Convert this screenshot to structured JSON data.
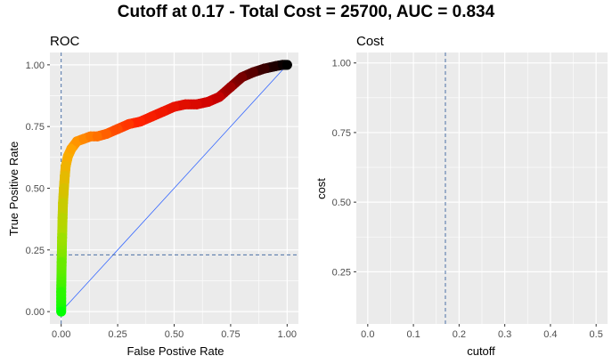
{
  "figure": {
    "title": "Cutoff at 0.17 - Total Cost = 25700, AUC = 0.834"
  },
  "chart_data": [
    {
      "type": "line",
      "title": "ROC",
      "xlabel": "False Postive Rate",
      "ylabel": "True Positive Rate",
      "xlim": [
        -0.05,
        1.05
      ],
      "ylim": [
        -0.05,
        1.05
      ],
      "x_ticks": [
        0.0,
        0.25,
        0.5,
        0.75,
        1.0
      ],
      "x_tick_labels": [
        "0.00",
        "0.25",
        "0.50",
        "0.75",
        "1.00"
      ],
      "y_ticks": [
        0.0,
        0.25,
        0.5,
        0.75,
        1.0
      ],
      "y_tick_labels": [
        "0.00",
        "0.25",
        "0.50",
        "0.75",
        "1.00"
      ],
      "grid": true,
      "background": "#ebebeb",
      "color_scale": [
        "#00ff00",
        "#aadd00",
        "#ffaa00",
        "#ff2200",
        "#cc0000",
        "#000000"
      ],
      "series": [
        {
          "x": [
            0.0,
            0.0,
            0.002,
            0.004,
            0.006,
            0.008,
            0.012,
            0.016,
            0.02,
            0.03,
            0.045,
            0.07,
            0.1,
            0.13,
            0.16,
            0.2,
            0.25,
            0.3,
            0.35,
            0.4,
            0.45,
            0.5,
            0.55,
            0.6,
            0.65,
            0.7,
            0.75,
            0.8,
            0.85,
            0.9,
            0.95,
            0.98,
            1.0
          ],
          "y": [
            0.0,
            0.08,
            0.2,
            0.3,
            0.38,
            0.44,
            0.5,
            0.55,
            0.59,
            0.63,
            0.66,
            0.69,
            0.7,
            0.71,
            0.71,
            0.72,
            0.74,
            0.76,
            0.77,
            0.79,
            0.81,
            0.83,
            0.84,
            0.84,
            0.85,
            0.87,
            0.91,
            0.95,
            0.97,
            0.985,
            0.995,
            1.0,
            1.0
          ]
        }
      ],
      "diagonal": {
        "x": [
          0,
          1
        ],
        "y": [
          0,
          1
        ],
        "color": "#3366ff"
      },
      "cutoff_lines": {
        "vline_x": 0.0,
        "hline_y": 0.23,
        "color": "#4a6fa5"
      }
    },
    {
      "type": "line",
      "title": "Cost",
      "xlabel": "cutoff",
      "ylabel": "cost",
      "xlim": [
        -0.025,
        0.525
      ],
      "ylim": [
        0.0625,
        1.0375
      ],
      "x_ticks": [
        0.0,
        0.1,
        0.2,
        0.3,
        0.4,
        0.5
      ],
      "x_tick_labels": [
        "0.0",
        "0.1",
        "0.2",
        "0.3",
        "0.4",
        "0.5"
      ],
      "y_ticks": [
        0.25,
        0.5,
        0.75,
        1.0
      ],
      "y_tick_labels": [
        "0.25",
        "0.50",
        "0.75",
        "1.00"
      ],
      "grid": true,
      "background": "#ebebeb",
      "series": [],
      "cutoff_lines": {
        "vline_x": 0.17,
        "color": "#4a6fa5"
      }
    }
  ]
}
